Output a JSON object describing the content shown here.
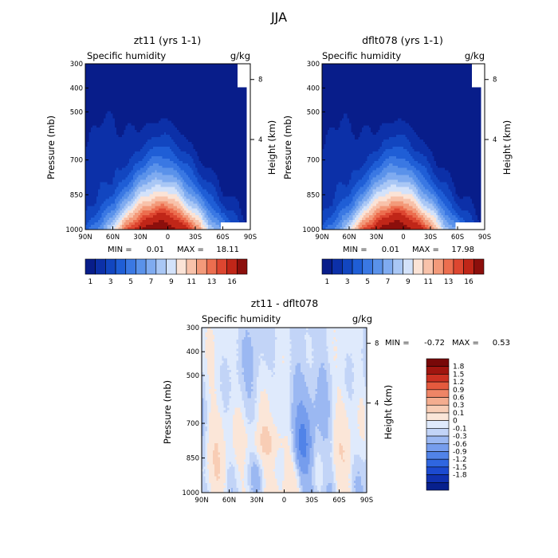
{
  "page_title": "JJA",
  "colors": {
    "absolute_scale": [
      "#081d8a",
      "#0c30a8",
      "#1246c0",
      "#1f5ed6",
      "#3a78e3",
      "#5a92ea",
      "#7fabf0",
      "#a9c7f5",
      "#d3e2fa",
      "#fbe3d6",
      "#f8c2aa",
      "#f39a7a",
      "#ec6e4f",
      "#dd4630",
      "#c02618",
      "#8c0f0c"
    ],
    "difference_scale": [
      "#07208d",
      "#1031b0",
      "#1c4ad0",
      "#2f66e0",
      "#5183e8",
      "#769ded",
      "#9bb8f2",
      "#c2d4f7",
      "#dfeafc",
      "#fbe6d8",
      "#f8cdb5",
      "#f4ad8f",
      "#ee8566",
      "#e45a3e",
      "#cc3122",
      "#a0150f",
      "#780808"
    ],
    "axis": "#000000"
  },
  "chart_data": [
    {
      "type": "heatmap",
      "name": "left-panel",
      "title": "zt11 (yrs 1-1)",
      "subtitle_left": "Specific humidity",
      "subtitle_right": "g/kg",
      "xlabel": "",
      "ylabel": "Pressure (mb)",
      "y2label": "Height (km)",
      "x_ticks": [
        "90N",
        "60N",
        "30N",
        "0",
        "30S",
        "60S",
        "90S"
      ],
      "y_ticks": [
        "300",
        "400",
        "500",
        "700",
        "850",
        "1000"
      ],
      "y2_ticks": [
        "8",
        "4"
      ],
      "xlim": [
        90,
        -90
      ],
      "ylim": [
        1000,
        300
      ],
      "min_label": "MIN =",
      "min": "0.01",
      "max_label": "MAX =",
      "max": "18.11",
      "colorbar_labels": [
        "1",
        "3",
        "5",
        "7",
        "9",
        "11",
        "13",
        "16"
      ],
      "peak": {
        "lat": 8,
        "pressure": 975,
        "value": 18.11
      }
    },
    {
      "type": "heatmap",
      "name": "right-panel",
      "title": "dflt078 (yrs 1-1)",
      "subtitle_left": "Specific humidity",
      "subtitle_right": "g/kg",
      "xlabel": "",
      "ylabel": "Pressure (mb)",
      "y2label": "Height (km)",
      "x_ticks": [
        "90N",
        "60N",
        "30N",
        "0",
        "30S",
        "60S",
        "90S"
      ],
      "y_ticks": [
        "300",
        "400",
        "500",
        "700",
        "850",
        "1000"
      ],
      "y2_ticks": [
        "8",
        "4"
      ],
      "xlim": [
        90,
        -90
      ],
      "ylim": [
        1000,
        300
      ],
      "min_label": "MIN =",
      "min": "0.01",
      "max_label": "MAX =",
      "max": "17.98",
      "colorbar_labels": [
        "1",
        "3",
        "5",
        "7",
        "9",
        "11",
        "13",
        "16"
      ],
      "peak": {
        "lat": 8,
        "pressure": 975,
        "value": 17.98
      }
    },
    {
      "type": "heatmap",
      "name": "difference-panel",
      "title": "zt11 - dflt078",
      "subtitle_left": "Specific humidity",
      "subtitle_right": "g/kg",
      "xlabel": "",
      "ylabel": "Pressure (mb)",
      "y2label": "Height (km)",
      "x_ticks": [
        "90N",
        "60N",
        "30N",
        "0",
        "30S",
        "60S",
        "90S"
      ],
      "y_ticks": [
        "300",
        "400",
        "500",
        "700",
        "850",
        "1000"
      ],
      "y2_ticks": [
        "8",
        "4"
      ],
      "xlim": [
        90,
        -90
      ],
      "ylim": [
        1000,
        300
      ],
      "min_label": "MIN =",
      "min": "-0.72",
      "max_label": "MAX =",
      "max": "0.53",
      "colorbar_labels": [
        "1.8",
        "1.5",
        "1.2",
        "0.9",
        "0.6",
        "0.3",
        "0.1",
        "0",
        "-0.1",
        "-0.3",
        "-0.6",
        "-0.9",
        "-1.2",
        "-1.5",
        "-1.8"
      ]
    }
  ]
}
